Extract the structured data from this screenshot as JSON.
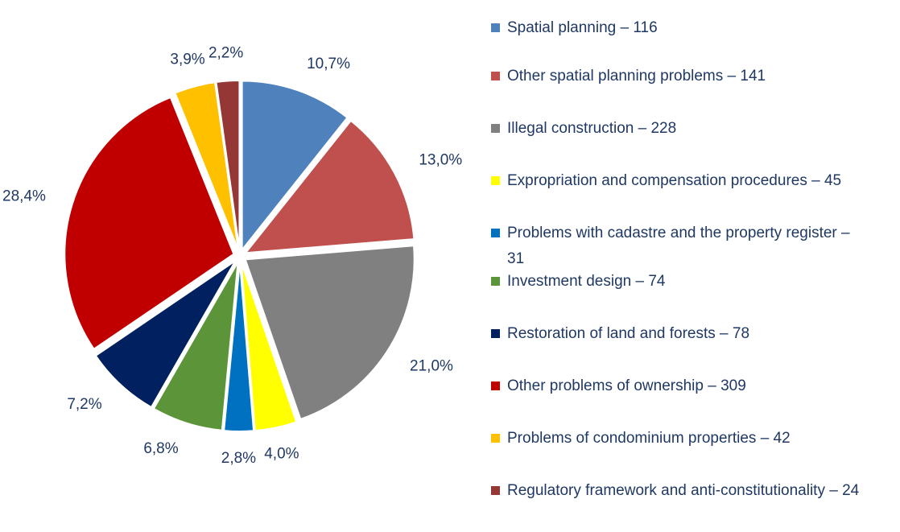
{
  "chart_data": {
    "type": "pie",
    "categories": [
      "Spatial planning – 116",
      "Other spatial planning problems – 141",
      "Illegal construction – 228",
      "Expropriation and compensation procedures – 45",
      "Problems with cadastre and the property register – 31",
      "Investment design – 74",
      "Restoration of land and forests – 78",
      "Other problems of ownership – 309",
      "Problems of condominium properties –  42",
      "Regulatory framework and anti-constitutionality – 24"
    ],
    "values": [
      10.7,
      13.0,
      21.0,
      4.0,
      2.8,
      6.8,
      7.2,
      28.4,
      3.9,
      2.2
    ],
    "value_labels": [
      "10,7%",
      "13,0%",
      "21,0%",
      "4,0%",
      "2,8%",
      "6,8%",
      "7,2%",
      "28,4%",
      "3,9%",
      "2,2%"
    ],
    "colors": [
      "#4f81bd",
      "#c0504d",
      "#808080",
      "#ffff00",
      "#0070c0",
      "#5b9439",
      "#002060",
      "#c00000",
      "#ffc000",
      "#953735"
    ],
    "legend": "right"
  }
}
